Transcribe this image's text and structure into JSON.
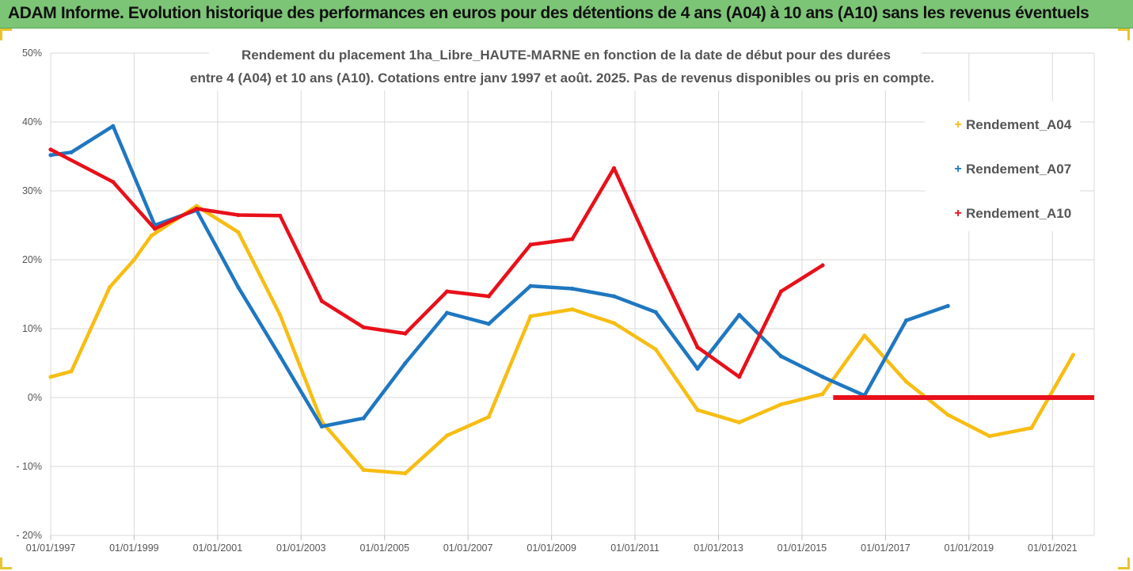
{
  "banner": {
    "title": "ADAM Informe. Evolution historique des performances en euros pour des détentions de 4 ans (A04) à 10 ans (A10) sans les revenus éventuels"
  },
  "colors": {
    "banner_bg": "#7cc576",
    "grid": "#d9d9d9",
    "frame_corner": "#e8c42e"
  },
  "chart_data": {
    "type": "line",
    "title_lines": [
      "Rendement du placement 1ha_Libre_HAUTE-MARNE en fonction de la date de début pour des durées",
      "entre 4 (A04) et 10 ans (A10). Cotations entre janv 1997 et août. 2025. Pas de revenus disponibles ou pris en compte."
    ],
    "x_ticks": [
      "01/01/1997",
      "01/01/1999",
      "01/01/2001",
      "01/01/2003",
      "01/01/2005",
      "01/01/2007",
      "01/01/2009",
      "01/01/2011",
      "01/01/2013",
      "01/01/2015",
      "01/01/2017",
      "01/01/2019",
      "01/01/2021"
    ],
    "xlim": [
      "1997-01-01",
      "2022-01-01"
    ],
    "y_ticks": [
      "50%",
      "40%",
      "30%",
      "20%",
      "10%",
      "0%",
      "- 10%",
      "- 20%"
    ],
    "y_tick_values": [
      50,
      40,
      30,
      20,
      10,
      0,
      -10,
      -20
    ],
    "ylim": [
      -20,
      50
    ],
    "grid": true,
    "legend_position": "right",
    "series": [
      {
        "name": "Rendement_A04",
        "color": "#f7bd13",
        "points": [
          [
            "1997-01-01",
            3.0
          ],
          [
            "1997-07-01",
            3.8
          ],
          [
            "1998-06-01",
            16.0
          ],
          [
            "1999-01-01",
            20.0
          ],
          [
            "1999-06-01",
            23.5
          ],
          [
            "2000-07-01",
            27.8
          ],
          [
            "2001-07-01",
            24.0
          ],
          [
            "2002-07-01",
            12.0
          ],
          [
            "2003-07-01",
            -3.5
          ],
          [
            "2004-07-01",
            -10.5
          ],
          [
            "2005-07-01",
            -11.0
          ],
          [
            "2006-07-01",
            -5.5
          ],
          [
            "2007-07-01",
            -2.8
          ],
          [
            "2008-07-01",
            11.8
          ],
          [
            "2009-07-01",
            12.8
          ],
          [
            "2010-07-01",
            10.8
          ],
          [
            "2011-07-01",
            7.0
          ],
          [
            "2012-07-01",
            -1.8
          ],
          [
            "2013-07-01",
            -3.6
          ],
          [
            "2014-07-01",
            -1.0
          ],
          [
            "2015-07-01",
            0.5
          ],
          [
            "2016-07-01",
            9.0
          ],
          [
            "2017-07-01",
            2.3
          ],
          [
            "2018-07-01",
            -2.5
          ],
          [
            "2019-07-01",
            -5.6
          ],
          [
            "2020-07-01",
            -4.4
          ],
          [
            "2021-07-01",
            6.2
          ]
        ]
      },
      {
        "name": "Rendement_A07",
        "color": "#1f77c0",
        "points": [
          [
            "1997-01-01",
            35.2
          ],
          [
            "1997-07-01",
            35.6
          ],
          [
            "1998-07-01",
            39.4
          ],
          [
            "1999-07-01",
            25.0
          ],
          [
            "2000-07-01",
            27.2
          ],
          [
            "2001-07-01",
            16.0
          ],
          [
            "2002-07-01",
            6.0
          ],
          [
            "2003-07-01",
            -4.2
          ],
          [
            "2004-07-01",
            -3.0
          ],
          [
            "2005-07-01",
            5.0
          ],
          [
            "2006-07-01",
            12.3
          ],
          [
            "2007-07-01",
            10.7
          ],
          [
            "2008-07-01",
            16.2
          ],
          [
            "2009-07-01",
            15.8
          ],
          [
            "2010-07-01",
            14.7
          ],
          [
            "2011-07-01",
            12.4
          ],
          [
            "2012-07-01",
            4.2
          ],
          [
            "2013-07-01",
            12.0
          ],
          [
            "2014-07-01",
            6.0
          ],
          [
            "2015-07-01",
            3.0
          ],
          [
            "2016-07-01",
            0.3
          ],
          [
            "2017-07-01",
            11.2
          ],
          [
            "2018-07-01",
            13.3
          ]
        ]
      },
      {
        "name": "Rendement_A10",
        "color": "#e8101a",
        "points": [
          [
            "1997-01-01",
            36.0
          ],
          [
            "1998-07-01",
            31.3
          ],
          [
            "1999-07-01",
            24.5
          ],
          [
            "2000-07-01",
            27.4
          ],
          [
            "2001-07-01",
            26.5
          ],
          [
            "2002-07-01",
            26.4
          ],
          [
            "2003-07-01",
            14.0
          ],
          [
            "2004-07-01",
            10.2
          ],
          [
            "2005-07-01",
            9.3
          ],
          [
            "2006-07-01",
            15.4
          ],
          [
            "2007-07-01",
            14.7
          ],
          [
            "2008-07-01",
            22.2
          ],
          [
            "2009-07-01",
            23.0
          ],
          [
            "2010-07-01",
            33.3
          ],
          [
            "2011-07-01",
            20.0
          ],
          [
            "2012-07-01",
            7.3
          ],
          [
            "2013-07-01",
            3.0
          ],
          [
            "2014-07-01",
            15.4
          ],
          [
            "2015-07-01",
            19.2
          ]
        ],
        "flat_segment": {
          "from": "2015-10-01",
          "to": "2022-01-01",
          "value": 0
        }
      }
    ]
  }
}
